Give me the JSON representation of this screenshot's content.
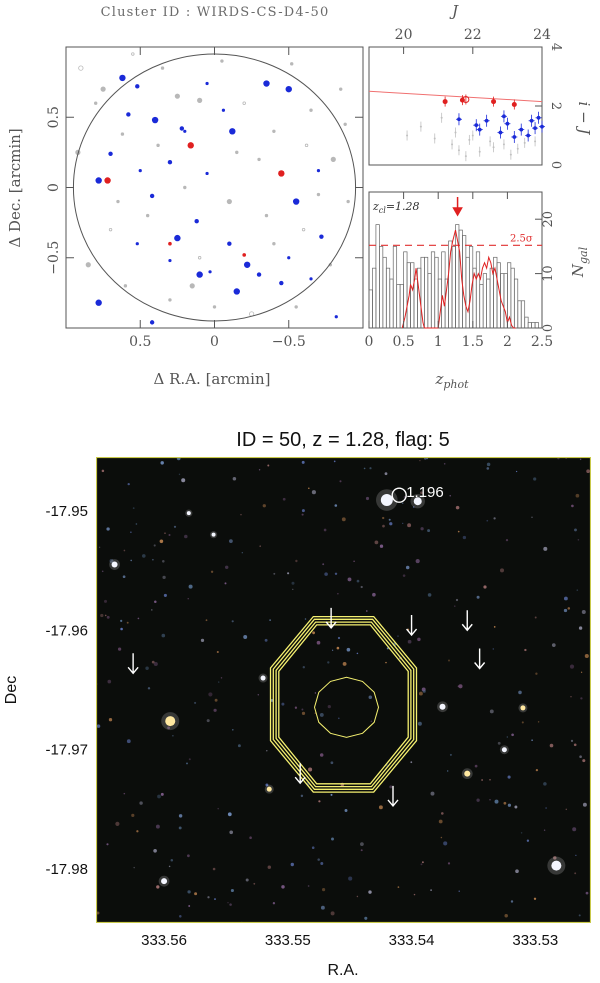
{
  "page_title": "Cluster ID : WIRDS-CS-D4-50",
  "chart_data": [
    {
      "type": "scatter",
      "name": "sky-map",
      "xlabel": "Δ R.A. [arcmin]",
      "ylabel": "Δ Dec. [arcmin]",
      "xlim": [
        1.0,
        -1.0
      ],
      "ylim": [
        -1.0,
        1.0
      ],
      "x_ticks": [
        0.5,
        0,
        -0.5
      ],
      "x_tick_labels": [
        "0.5",
        "0",
        "−0.5"
      ],
      "y_ticks": [
        -0.5,
        0,
        0.5
      ],
      "y_tick_labels": [
        "−0.5",
        "0",
        "0.5"
      ],
      "circle_radius": 0.95,
      "colors": {
        "red": "#e02020",
        "blue": "#1a2ad8",
        "grey": "#b8b8b8",
        "axis": "#444444"
      },
      "points": {
        "blue": [
          [
            0.62,
            0.78
          ],
          [
            0.52,
            0.72
          ],
          [
            0.05,
            0.74
          ],
          [
            -0.35,
            0.74
          ],
          [
            0.22,
            0.42
          ],
          [
            0.2,
            0.4
          ],
          [
            -0.5,
            0.7
          ],
          [
            0.58,
            0.52
          ],
          [
            -0.06,
            0.55
          ],
          [
            0.4,
            0.48
          ],
          [
            0.7,
            0.24
          ],
          [
            0.5,
            0.12
          ],
          [
            0.78,
            0.05
          ],
          [
            0.3,
            0.18
          ],
          [
            -0.7,
            0.12
          ],
          [
            -0.12,
            0.4
          ],
          [
            0.42,
            -0.06
          ],
          [
            0.05,
            0.1
          ],
          [
            -0.55,
            -0.1
          ],
          [
            0.12,
            -0.24
          ],
          [
            0.52,
            -0.4
          ],
          [
            0.25,
            -0.36
          ],
          [
            -0.1,
            -0.4
          ],
          [
            -0.5,
            -0.5
          ],
          [
            -0.22,
            -0.55
          ],
          [
            -0.72,
            -0.35
          ],
          [
            0.03,
            -0.6
          ],
          [
            0.1,
            -0.62
          ],
          [
            -0.45,
            -0.68
          ],
          [
            -0.65,
            -0.65
          ],
          [
            -0.15,
            -0.74
          ],
          [
            0.42,
            -0.96
          ],
          [
            -0.82,
            -0.92
          ],
          [
            0.78,
            -0.82
          ],
          [
            -0.3,
            -0.62
          ],
          [
            0.3,
            -0.52
          ]
        ],
        "red": [
          [
            0.72,
            0.05
          ],
          [
            0.16,
            0.3
          ],
          [
            -0.45,
            0.1
          ],
          [
            0.3,
            -0.4
          ],
          [
            -0.2,
            -0.48
          ]
        ],
        "grey": [
          [
            0.9,
            0.85
          ],
          [
            0.8,
            0.6
          ],
          [
            0.62,
            0.38
          ],
          [
            0.35,
            0.85
          ],
          [
            0.1,
            0.62
          ],
          [
            -0.2,
            0.6
          ],
          [
            -0.4,
            0.4
          ],
          [
            -0.65,
            0.55
          ],
          [
            -0.8,
            0.2
          ],
          [
            -0.9,
            -0.1
          ],
          [
            -0.6,
            -0.3
          ],
          [
            -0.35,
            -0.2
          ],
          [
            -0.1,
            -0.1
          ],
          [
            0.2,
            0.0
          ],
          [
            0.45,
            -0.2
          ],
          [
            0.7,
            -0.3
          ],
          [
            0.85,
            -0.55
          ],
          [
            0.6,
            -0.7
          ],
          [
            0.3,
            -0.8
          ],
          [
            0.0,
            -0.85
          ],
          [
            -0.25,
            -0.9
          ],
          [
            -0.55,
            -0.85
          ],
          [
            -0.78,
            -0.55
          ],
          [
            -0.88,
            0.45
          ],
          [
            0.92,
            0.25
          ],
          [
            0.55,
            0.95
          ],
          [
            -0.05,
            0.9
          ],
          [
            -0.52,
            0.88
          ],
          [
            0.25,
            0.65
          ],
          [
            -0.3,
            0.2
          ],
          [
            0.1,
            -0.5
          ],
          [
            -0.7,
            -0.05
          ],
          [
            0.75,
            0.7
          ],
          [
            -0.15,
            0.25
          ],
          [
            0.38,
            0.3
          ],
          [
            -0.62,
            0.3
          ],
          [
            0.15,
            -0.7
          ],
          [
            -0.4,
            -0.4
          ],
          [
            0.65,
            -0.1
          ],
          [
            -0.85,
            0.7
          ]
        ]
      }
    },
    {
      "type": "scatter",
      "name": "color-magnitude",
      "xlabel": "J",
      "ylabel": "i − J",
      "xlim": [
        19,
        24
      ],
      "ylim": [
        0,
        4
      ],
      "x_ticks": [
        20,
        22,
        24
      ],
      "y_ticks": [
        0,
        2,
        4
      ],
      "red_sequence": {
        "x": [
          19,
          24
        ],
        "y": [
          2.5,
          2.15
        ]
      },
      "red_points": [
        [
          21.2,
          2.15
        ],
        [
          21.7,
          2.2
        ],
        [
          21.8,
          2.22
        ],
        [
          22.6,
          2.15
        ],
        [
          23.2,
          2.05
        ]
      ],
      "blue_points": [
        [
          21.6,
          1.55
        ],
        [
          22.1,
          1.35
        ],
        [
          22.2,
          1.2
        ],
        [
          22.4,
          1.5
        ],
        [
          22.8,
          1.1
        ],
        [
          23.0,
          1.4
        ],
        [
          23.2,
          0.95
        ],
        [
          23.4,
          1.2
        ],
        [
          23.6,
          1.0
        ],
        [
          23.7,
          1.5
        ],
        [
          23.8,
          1.25
        ],
        [
          23.9,
          1.6
        ],
        [
          24.0,
          1.3
        ],
        [
          22.9,
          1.65
        ]
      ],
      "grey_points": [
        [
          20.1,
          1.0
        ],
        [
          20.5,
          1.3
        ],
        [
          20.9,
          0.9
        ],
        [
          21.1,
          1.6
        ],
        [
          21.4,
          0.7
        ],
        [
          21.5,
          1.1
        ],
        [
          21.6,
          0.5
        ],
        [
          21.9,
          0.85
        ],
        [
          22.0,
          1.0
        ],
        [
          22.5,
          0.8
        ],
        [
          22.6,
          0.6
        ],
        [
          22.9,
          0.7
        ],
        [
          23.3,
          0.55
        ],
        [
          23.5,
          0.75
        ],
        [
          23.8,
          0.8
        ],
        [
          21.8,
          0.3
        ],
        [
          22.2,
          0.45
        ],
        [
          23.1,
          0.35
        ]
      ]
    },
    {
      "type": "bar",
      "name": "photo-z-histogram",
      "xlabel": "z_phot",
      "ylabel": "N_gal",
      "xlim": [
        0,
        2.5
      ],
      "ylim": [
        0,
        25
      ],
      "x_ticks": [
        0,
        0.5,
        1,
        1.5,
        2,
        2.5
      ],
      "y_ticks": [
        0,
        10,
        20
      ],
      "y_tick_labels": [
        "0",
        "10",
        "20"
      ],
      "z_cl_label": "z",
      "z_cl_sub": "cl",
      "z_cl_value": "=1.28",
      "z_cl": 1.28,
      "sigma_label": "2.5σ",
      "sigma_level": 15.2,
      "bin_width": 0.05,
      "hist": [
        7,
        11,
        19,
        15,
        13,
        11,
        9,
        15,
        8,
        8,
        14,
        12,
        12,
        9,
        11,
        13,
        13,
        10,
        14,
        13,
        9,
        14,
        9,
        16,
        15,
        19,
        18,
        17,
        13,
        15,
        11,
        14,
        8,
        10,
        9,
        11,
        13,
        12,
        10,
        10,
        12,
        11,
        9,
        5,
        5,
        2,
        1,
        1,
        1,
        0
      ],
      "smooth_x": [
        0.48,
        0.52,
        0.55,
        0.58,
        0.6,
        0.63,
        0.66,
        0.68,
        0.7,
        0.73,
        0.76,
        0.78,
        0.8,
        0.85,
        0.9,
        0.95,
        1.0,
        1.03,
        1.06,
        1.09,
        1.12,
        1.15,
        1.18,
        1.21,
        1.25,
        1.28,
        1.31,
        1.34,
        1.37,
        1.4,
        1.43,
        1.46,
        1.49,
        1.52,
        1.55,
        1.58,
        1.61,
        1.64,
        1.67,
        1.7,
        1.73,
        1.76,
        1.79,
        1.82,
        1.85,
        1.88,
        1.91,
        1.94,
        1.97,
        2.0,
        2.03,
        2.06,
        2.09,
        2.12
      ],
      "smooth_y": [
        0,
        2,
        4,
        6,
        8,
        7,
        9,
        11,
        9,
        6,
        3,
        1,
        0,
        0,
        0,
        0,
        0,
        3,
        6,
        4,
        7,
        10,
        14,
        16,
        18,
        16,
        14,
        9,
        6,
        4,
        3,
        5,
        8,
        10,
        9,
        10,
        9,
        11,
        12,
        11,
        13,
        12,
        10,
        11,
        9,
        7,
        5,
        4,
        3,
        1,
        2,
        0.5,
        0,
        0
      ]
    }
  ],
  "sky_image": {
    "title": "ID = 50, z = 1.28, flag: 5",
    "xlabel": "R.A.",
    "ylabel": "Dec",
    "x_ticks": [
      333.56,
      333.55,
      333.54,
      333.53
    ],
    "x_tick_labels": [
      "333.56",
      "333.55",
      "333.54",
      "333.53"
    ],
    "y_ticks": [
      -17.95,
      -17.96,
      -17.97,
      -17.98
    ],
    "y_tick_labels": [
      "-17.95",
      "-17.96",
      "-17.97",
      "-17.98"
    ],
    "ra_range": [
      333.5655,
      333.5255
    ],
    "dec_range": [
      -17.9455,
      -17.9845
    ],
    "spec_z_label": "1.196",
    "spec_z_pos": [
      333.541,
      -17.9487
    ],
    "contour_color": "#f5f070",
    "arrows": [
      [
        333.5465,
        -17.9598
      ],
      [
        333.54,
        -17.9604
      ],
      [
        333.5355,
        -17.96
      ],
      [
        333.5345,
        -17.9632
      ],
      [
        333.5625,
        -17.9636
      ],
      [
        333.549,
        -17.9728
      ],
      [
        333.5415,
        -17.9747
      ]
    ],
    "stars": [
      [
        333.542,
        -17.9491,
        6
      ],
      [
        333.5395,
        -17.9492,
        4
      ],
      [
        333.5595,
        -17.9676,
        5
      ],
      [
        333.564,
        -17.9545,
        3
      ],
      [
        333.5283,
        -17.9797,
        5
      ],
      [
        333.5355,
        -17.972,
        3
      ],
      [
        333.5375,
        -17.9664,
        3
      ],
      [
        333.552,
        -17.964,
        2.5
      ],
      [
        333.531,
        -17.9665,
        2.5
      ],
      [
        333.5325,
        -17.97,
        2.5
      ],
      [
        333.56,
        -17.981,
        3
      ],
      [
        333.5515,
        -17.9733,
        2.5
      ],
      [
        333.558,
        -17.9502,
        2
      ],
      [
        333.556,
        -17.952,
        2
      ]
    ]
  }
}
